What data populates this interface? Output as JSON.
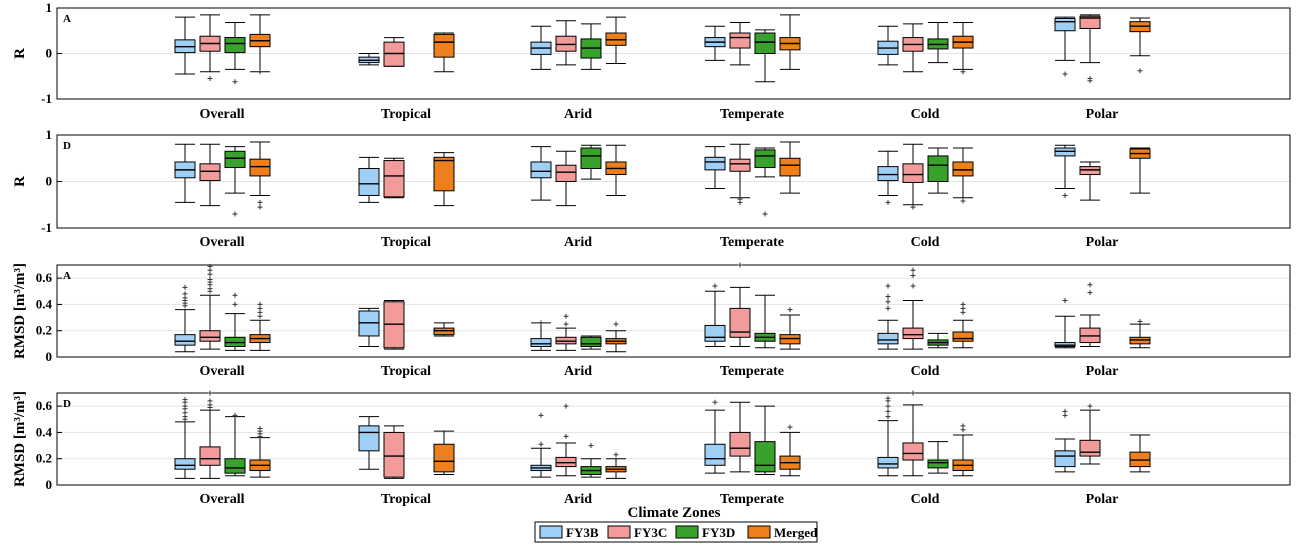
{
  "colors": {
    "FY3B": "#9fcff5",
    "FY3C": "#f29b9b",
    "FY3D": "#39a22d",
    "Merged": "#ef7f1a"
  },
  "legend": {
    "items": [
      "FY3B",
      "FY3C",
      "FY3D",
      "Merged"
    ]
  },
  "xlabel": "Climate Zones",
  "chart_data": [
    {
      "type": "box",
      "panel_label": "A",
      "ylabel": "R",
      "ylim": [
        -1,
        1
      ],
      "yticks": [
        "1",
        "0",
        "-1"
      ],
      "categories": [
        "Overall",
        "Tropical",
        "Arid",
        "Temperate",
        "Cold",
        "Polar"
      ],
      "series": [
        {
          "name": "FY3B",
          "boxes": [
            [
              -0.45,
              0.02,
              0.15,
              0.3,
              0.8
            ],
            [
              -0.25,
              -0.2,
              -0.15,
              -0.08,
              0.0
            ],
            [
              -0.35,
              -0.02,
              0.12,
              0.25,
              0.6
            ],
            [
              -0.15,
              0.15,
              0.25,
              0.35,
              0.6
            ],
            [
              -0.25,
              -0.02,
              0.12,
              0.27,
              0.6
            ],
            [
              -0.15,
              0.5,
              0.7,
              0.77,
              0.8
            ]
          ],
          "outliers": [
            [],
            [],
            [],
            [],
            [],
            [
              -0.45
            ]
          ]
        },
        {
          "name": "FY3C",
          "boxes": [
            [
              -0.4,
              0.05,
              0.22,
              0.38,
              0.85
            ],
            [
              -0.28,
              -0.28,
              0.0,
              0.25,
              0.35
            ],
            [
              -0.25,
              0.05,
              0.2,
              0.38,
              0.72
            ],
            [
              -0.25,
              0.12,
              0.35,
              0.45,
              0.68
            ],
            [
              -0.4,
              0.05,
              0.2,
              0.35,
              0.65
            ],
            [
              -0.2,
              0.55,
              0.78,
              0.82,
              0.85
            ]
          ],
          "outliers": [
            [
              -0.55
            ],
            [],
            [],
            [],
            [],
            [
              -0.55,
              -0.6
            ]
          ]
        },
        {
          "name": "FY3D",
          "boxes": [
            [
              -0.35,
              0.02,
              0.22,
              0.35,
              0.68
            ],
            null,
            [
              -0.35,
              -0.1,
              0.12,
              0.32,
              0.65
            ],
            [
              -0.62,
              0.0,
              0.25,
              0.45,
              0.52
            ],
            [
              -0.2,
              0.1,
              0.2,
              0.32,
              0.68
            ],
            null
          ],
          "outliers": [
            [
              -0.62
            ],
            null,
            [],
            [],
            [],
            null
          ]
        },
        {
          "name": "Merged",
          "boxes": [
            [
              -0.4,
              0.15,
              0.28,
              0.42,
              0.85
            ],
            [
              -0.4,
              -0.08,
              0.25,
              0.42,
              0.45
            ],
            [
              -0.22,
              0.18,
              0.3,
              0.45,
              0.8
            ],
            [
              -0.35,
              0.08,
              0.22,
              0.35,
              0.85
            ],
            [
              -0.35,
              0.12,
              0.25,
              0.38,
              0.68
            ],
            [
              -0.05,
              0.48,
              0.6,
              0.7,
              0.78
            ]
          ],
          "outliers": [
            [
              -0.4
            ],
            [],
            [],
            [],
            [
              -0.4
            ],
            [
              -0.38
            ]
          ]
        }
      ]
    },
    {
      "type": "box",
      "panel_label": "D",
      "ylabel": "R",
      "ylim": [
        -1,
        1
      ],
      "yticks": [
        "1",
        "0",
        "-1"
      ],
      "categories": [
        "Overall",
        "Tropical",
        "Arid",
        "Temperate",
        "Cold",
        "Polar"
      ],
      "series": [
        {
          "name": "FY3B",
          "boxes": [
            [
              -0.45,
              0.08,
              0.25,
              0.42,
              0.8
            ],
            [
              -0.45,
              -0.3,
              -0.05,
              0.28,
              0.52
            ],
            [
              -0.4,
              0.08,
              0.22,
              0.42,
              0.75
            ],
            [
              -0.15,
              0.25,
              0.42,
              0.52,
              0.75
            ],
            [
              -0.3,
              0.02,
              0.15,
              0.32,
              0.65
            ],
            [
              -0.15,
              0.55,
              0.65,
              0.72,
              0.78
            ]
          ],
          "outliers": [
            [],
            [],
            [],
            [],
            [
              -0.45
            ],
            [
              -0.3
            ]
          ]
        },
        {
          "name": "FY3C",
          "boxes": [
            [
              -0.52,
              0.02,
              0.22,
              0.38,
              0.8
            ],
            [
              -0.35,
              -0.33,
              0.12,
              0.45,
              0.5
            ],
            [
              -0.52,
              0.0,
              0.2,
              0.35,
              0.65
            ],
            [
              -0.35,
              0.22,
              0.38,
              0.48,
              0.8
            ],
            [
              -0.5,
              -0.02,
              0.15,
              0.38,
              0.8
            ],
            [
              -0.4,
              0.15,
              0.25,
              0.32,
              0.42
            ]
          ],
          "outliers": [
            [],
            [],
            [],
            [
              -0.38,
              -0.45
            ],
            [
              -0.55
            ],
            []
          ]
        },
        {
          "name": "FY3D",
          "boxes": [
            [
              -0.25,
              0.3,
              0.5,
              0.65,
              0.75
            ],
            null,
            [
              0.05,
              0.28,
              0.55,
              0.72,
              0.78
            ],
            [
              0.1,
              0.3,
              0.55,
              0.68,
              0.72
            ],
            [
              -0.25,
              0.0,
              0.35,
              0.55,
              0.72
            ],
            null
          ],
          "outliers": [
            [
              -0.7
            ],
            null,
            [],
            [
              -0.7
            ],
            [],
            null
          ]
        },
        {
          "name": "Merged",
          "boxes": [
            [
              -0.3,
              0.12,
              0.32,
              0.48,
              0.85
            ],
            [
              -0.52,
              -0.2,
              0.45,
              0.52,
              0.62
            ],
            [
              -0.3,
              0.15,
              0.28,
              0.42,
              0.78
            ],
            [
              -0.25,
              0.12,
              0.35,
              0.5,
              0.85
            ],
            [
              -0.35,
              0.12,
              0.25,
              0.42,
              0.72
            ],
            [
              -0.25,
              0.5,
              0.6,
              0.7,
              0.72
            ]
          ],
          "outliers": [
            [
              -0.45,
              -0.55
            ],
            [],
            [],
            [],
            [
              -0.42
            ],
            []
          ]
        }
      ]
    },
    {
      "type": "box",
      "panel_label": "A",
      "ylabel": "RMSD [m³/m³]",
      "ylim": [
        0,
        0.7
      ],
      "yticks": [
        "0.6",
        "0.4",
        "0.2",
        "0"
      ],
      "categories": [
        "Overall",
        "Tropical",
        "Arid",
        "Temperate",
        "Cold",
        "Polar"
      ],
      "series": [
        {
          "name": "FY3B",
          "boxes": [
            [
              0.04,
              0.09,
              0.12,
              0.17,
              0.36
            ],
            [
              0.08,
              0.16,
              0.26,
              0.35,
              0.37
            ],
            [
              0.05,
              0.08,
              0.1,
              0.14,
              0.26
            ],
            [
              0.08,
              0.12,
              0.15,
              0.24,
              0.5
            ],
            [
              0.06,
              0.1,
              0.13,
              0.18,
              0.28
            ],
            [
              0.07,
              0.08,
              0.09,
              0.11,
              0.31
            ]
          ],
          "outliers": [
            [
              0.39,
              0.41,
              0.43,
              0.45,
              0.48,
              0.53
            ],
            [],
            [
              0.26
            ],
            [
              0.54
            ],
            [
              0.37,
              0.42,
              0.46,
              0.54
            ],
            [
              0.43
            ]
          ]
        },
        {
          "name": "FY3C",
          "boxes": [
            [
              0.06,
              0.12,
              0.15,
              0.2,
              0.47
            ],
            [
              0.06,
              0.07,
              0.25,
              0.42,
              0.43
            ],
            [
              0.05,
              0.1,
              0.12,
              0.15,
              0.22
            ],
            [
              0.08,
              0.15,
              0.19,
              0.37,
              0.53
            ],
            [
              0.06,
              0.14,
              0.17,
              0.22,
              0.43
            ],
            [
              0.08,
              0.11,
              0.16,
              0.22,
              0.32
            ]
          ],
          "outliers": [
            [
              0.5,
              0.52,
              0.55,
              0.57,
              0.59,
              0.63,
              0.66,
              0.69
            ],
            [],
            [
              0.25,
              0.31
            ],
            [
              0.7
            ],
            [
              0.54,
              0.62,
              0.66
            ],
            [
              0.49,
              0.55
            ]
          ]
        },
        {
          "name": "FY3D",
          "boxes": [
            [
              0.05,
              0.08,
              0.11,
              0.15,
              0.33
            ],
            null,
            [
              0.06,
              0.08,
              0.1,
              0.15,
              0.16
            ],
            [
              0.07,
              0.12,
              0.15,
              0.18,
              0.47
            ],
            [
              0.07,
              0.09,
              0.11,
              0.13,
              0.18
            ],
            null
          ],
          "outliers": [
            [
              0.4,
              0.47
            ],
            null,
            [],
            [],
            [],
            null
          ]
        },
        {
          "name": "Merged",
          "boxes": [
            [
              0.05,
              0.11,
              0.14,
              0.17,
              0.28
            ],
            [
              0.16,
              0.17,
              0.2,
              0.22,
              0.26
            ],
            [
              0.04,
              0.1,
              0.12,
              0.14,
              0.2
            ],
            [
              0.06,
              0.1,
              0.14,
              0.17,
              0.32
            ],
            [
              0.07,
              0.12,
              0.14,
              0.19,
              0.28
            ],
            [
              0.07,
              0.1,
              0.13,
              0.15,
              0.25
            ]
          ],
          "outliers": [
            [
              0.31,
              0.34,
              0.37,
              0.4
            ],
            [],
            [
              0.25
            ],
            [
              0.36
            ],
            [
              0.34,
              0.37,
              0.4
            ],
            [
              0.27
            ]
          ]
        }
      ]
    },
    {
      "type": "box",
      "panel_label": "D",
      "ylabel": "RMSD [m³/m³]",
      "ylim": [
        0,
        0.7
      ],
      "yticks": [
        "0.6",
        "0.4",
        "0.2",
        "0"
      ],
      "categories": [
        "Overall",
        "Tropical",
        "Arid",
        "Temperate",
        "Cold",
        "Polar"
      ],
      "series": [
        {
          "name": "FY3B",
          "boxes": [
            [
              0.05,
              0.12,
              0.15,
              0.2,
              0.48
            ],
            [
              0.12,
              0.26,
              0.4,
              0.45,
              0.52
            ],
            [
              0.06,
              0.11,
              0.13,
              0.15,
              0.28
            ],
            [
              0.09,
              0.15,
              0.2,
              0.31,
              0.57
            ],
            [
              0.07,
              0.13,
              0.16,
              0.21,
              0.49
            ],
            [
              0.1,
              0.14,
              0.22,
              0.26,
              0.35
            ]
          ],
          "outliers": [
            [
              0.5,
              0.52,
              0.55,
              0.58,
              0.6,
              0.63,
              0.65
            ],
            [],
            [
              0.31,
              0.53
            ],
            [
              0.63
            ],
            [
              0.52,
              0.56,
              0.6,
              0.64,
              0.66
            ],
            [
              0.53,
              0.56
            ]
          ]
        },
        {
          "name": "FY3C",
          "boxes": [
            [
              0.05,
              0.15,
              0.2,
              0.29,
              0.57
            ],
            [
              0.05,
              0.06,
              0.22,
              0.4,
              0.45
            ],
            [
              0.07,
              0.14,
              0.17,
              0.21,
              0.32
            ],
            [
              0.1,
              0.22,
              0.28,
              0.4,
              0.63
            ],
            [
              0.07,
              0.19,
              0.24,
              0.32,
              0.61
            ],
            [
              0.16,
              0.22,
              0.25,
              0.34,
              0.57
            ]
          ],
          "outliers": [
            [
              0.59,
              0.61,
              0.64,
              0.7
            ],
            [],
            [
              0.37,
              0.6
            ],
            [],
            [
              0.7
            ],
            [
              0.6
            ]
          ]
        },
        {
          "name": "FY3D",
          "boxes": [
            [
              0.07,
              0.09,
              0.13,
              0.2,
              0.52
            ],
            null,
            [
              0.06,
              0.08,
              0.11,
              0.14,
              0.2
            ],
            [
              0.08,
              0.1,
              0.15,
              0.33,
              0.6
            ],
            [
              0.09,
              0.13,
              0.17,
              0.19,
              0.33
            ],
            null
          ],
          "outliers": [
            [
              0.53
            ],
            null,
            [
              0.3
            ],
            [],
            [],
            null
          ]
        },
        {
          "name": "Merged",
          "boxes": [
            [
              0.06,
              0.11,
              0.15,
              0.19,
              0.36
            ],
            [
              0.08,
              0.1,
              0.18,
              0.31,
              0.41
            ],
            [
              0.05,
              0.1,
              0.12,
              0.14,
              0.2
            ],
            [
              0.07,
              0.12,
              0.17,
              0.22,
              0.4
            ],
            [
              0.07,
              0.11,
              0.15,
              0.19,
              0.38
            ],
            [
              0.1,
              0.14,
              0.19,
              0.25,
              0.38
            ]
          ],
          "outliers": [
            [
              0.37,
              0.39,
              0.41,
              0.43
            ],
            [],
            [
              0.23
            ],
            [
              0.44
            ],
            [
              0.42,
              0.45
            ],
            []
          ]
        }
      ]
    }
  ]
}
